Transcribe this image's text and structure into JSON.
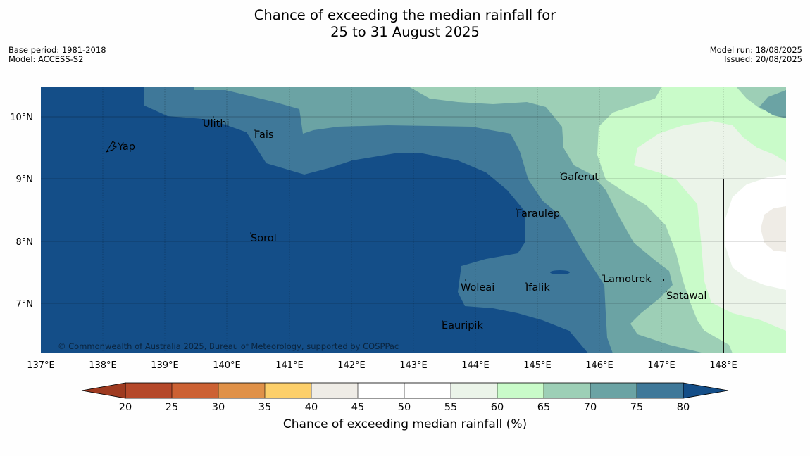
{
  "header": {
    "title_line1": "Chance of exceeding the median rainfall for",
    "title_line2": "25 to 31 August 2025",
    "base_period": "Base period: 1981-2018",
    "model": "Model: ACCESS-S2",
    "model_run": "Model run: 18/08/2025",
    "issued": "Issued: 20/08/2025"
  },
  "map": {
    "lon_labels": [
      "137°E",
      "138°E",
      "139°E",
      "140°E",
      "141°E",
      "142°E",
      "143°E",
      "144°E",
      "145°E",
      "146°E",
      "147°E",
      "148°E"
    ],
    "lat_labels": [
      "10°N",
      "9°N",
      "8°N",
      "7°N"
    ],
    "places": [
      "Yap",
      "Ulithi",
      "Fais",
      "Gaferut",
      "Faraulep",
      "Sorol",
      "Woleai",
      "Ifalik",
      "Lamotrek",
      "Satawal",
      "Eauripik"
    ],
    "copyright": "© Commonwealth of Australia 2025, Bureau of Meteorology, supported by COSPPac"
  },
  "colorbar": {
    "title": "Chance of exceeding median rainfall (%)",
    "ticks": [
      "20",
      "25",
      "30",
      "35",
      "40",
      "45",
      "50",
      "55",
      "60",
      "65",
      "70",
      "75",
      "80"
    ],
    "colors": {
      "under_20": "#9e3a20",
      "20_25": "#b5482a",
      "25_30": "#cc6133",
      "30_35": "#e09148",
      "35_40": "#fccf6a",
      "40_45": "#efece6",
      "45_50": "#ffffff",
      "50_55": "#ffffff",
      "55_60": "#ebf4e9",
      "60_65": "#c9fbc9",
      "65_70": "#9dcfb6",
      "70_75": "#6ba3a4",
      "75_80": "#3f7899",
      "over_80": "#144e88"
    }
  }
}
